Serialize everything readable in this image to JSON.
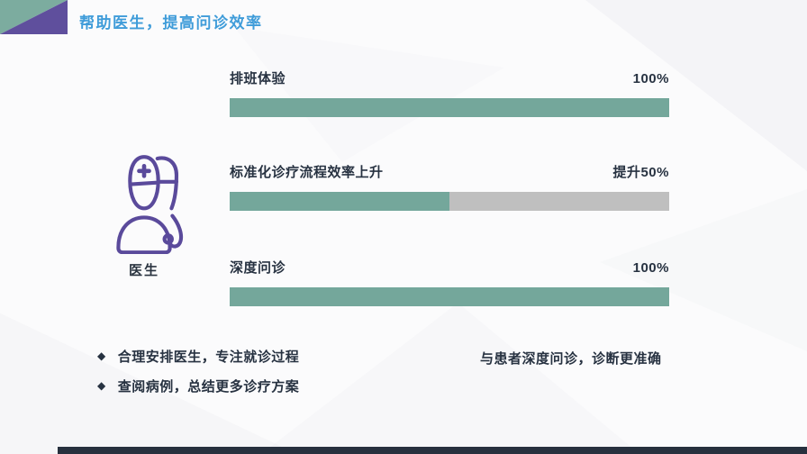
{
  "header": {
    "title": "帮助医生，提高问诊效率"
  },
  "colors": {
    "title_blue": "#3f9cd9",
    "bar_green": "#74a79b",
    "bar_track_gray": "#bfbfbf",
    "icon_purple": "#5a4a9b",
    "corner_teal": "#7cac9f",
    "corner_purple": "#5f4f9d",
    "text_dark": "#273241",
    "footer_bar": "#27303e"
  },
  "doctor": {
    "label": "医生",
    "icon": "doctor-icon"
  },
  "chart_data": {
    "type": "bar",
    "orientation": "horizontal",
    "categories": [
      "排班体验",
      "标准化诊疗流程效率上升",
      "深度问诊"
    ],
    "values": [
      100,
      50,
      100
    ],
    "value_labels": [
      "100%",
      "提升50%",
      "100%"
    ],
    "xlim": [
      0,
      100
    ],
    "bar_color": "#74a79b",
    "track_color": "#bfbfbf",
    "grid": false,
    "legend": false
  },
  "bars": [
    {
      "label": "排班体验",
      "value_label": "100%",
      "percent": 100
    },
    {
      "label": "标准化诊疗流程效率上升",
      "value_label": "提升50%",
      "percent": 50
    },
    {
      "label": "深度问诊",
      "value_label": "100%",
      "percent": 100
    }
  ],
  "notes": {
    "bullets": [
      {
        "marker": "◆",
        "text": "合理安排医生，专注就诊过程"
      },
      {
        "marker": "◆",
        "text": "查阅病例，总结更多诊疗方案"
      }
    ],
    "right_note": "与患者深度问诊，诊断更准确"
  }
}
